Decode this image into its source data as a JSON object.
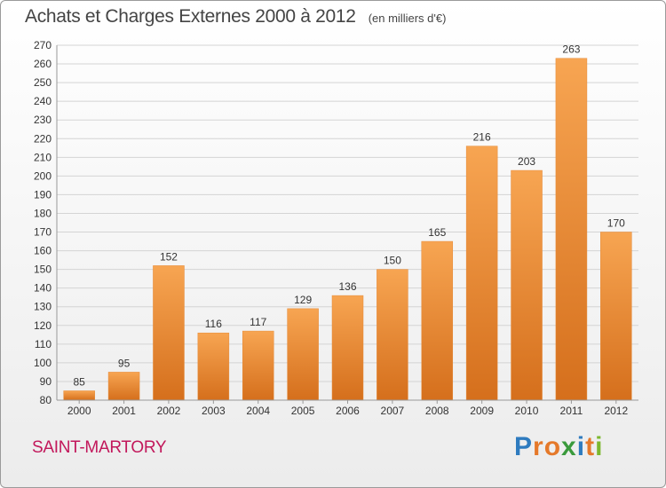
{
  "header": {
    "title": "Achats et Charges Externes 2000 à 2012",
    "unit": "(en milliers d'€)"
  },
  "footer": {
    "commune": "SAINT-MARTORY",
    "logo_text": "Proxiti",
    "logo_colors": [
      "#2e7bbf",
      "#e5792a",
      "#e5792a",
      "#3a9a3c",
      "#2e7bbf",
      "#e5792a",
      "#7cb82f"
    ]
  },
  "chart_data": {
    "type": "bar",
    "categories": [
      "2000",
      "2001",
      "2002",
      "2003",
      "2004",
      "2005",
      "2006",
      "2007",
      "2008",
      "2009",
      "2010",
      "2011",
      "2012"
    ],
    "values": [
      85,
      95,
      152,
      116,
      117,
      129,
      136,
      150,
      165,
      216,
      203,
      263,
      170
    ],
    "title": "Achats et Charges Externes 2000 à 2012",
    "subtitle": "(en milliers d'€)",
    "ylim": [
      80,
      270
    ],
    "yticks": [
      80,
      90,
      100,
      110,
      120,
      130,
      140,
      150,
      160,
      170,
      180,
      190,
      200,
      210,
      220,
      230,
      240,
      250,
      260,
      270
    ],
    "grid": true,
    "bar_color": "#f0923a",
    "bar_color_dark": "#d9731f"
  }
}
